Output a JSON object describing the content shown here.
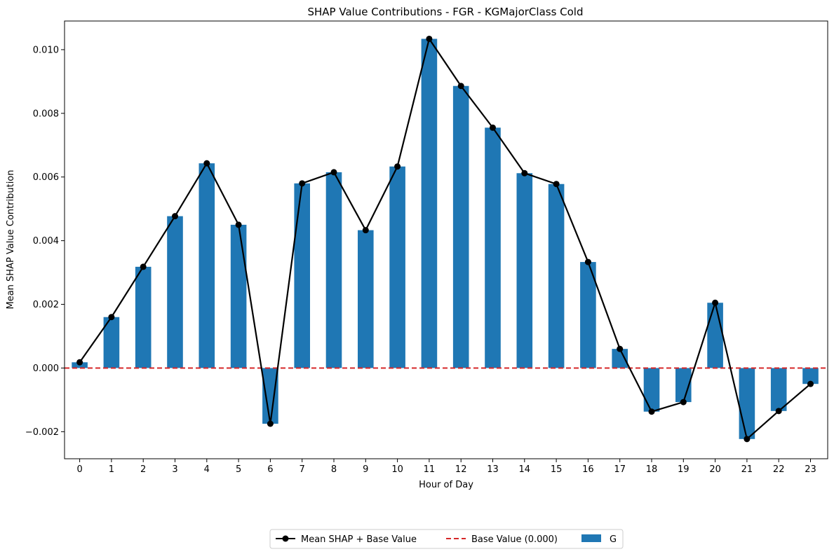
{
  "chart_data": {
    "type": "bar",
    "title": "SHAP Value Contributions - FGR - KGMajorClass Cold",
    "xlabel": "Hour of Day",
    "ylabel": "Mean SHAP Value Contribution",
    "categories": [
      "0",
      "1",
      "2",
      "3",
      "4",
      "5",
      "6",
      "7",
      "8",
      "9",
      "10",
      "11",
      "12",
      "13",
      "14",
      "15",
      "16",
      "17",
      "18",
      "19",
      "20",
      "21",
      "22",
      "23"
    ],
    "ylim": [
      -0.00285,
      0.0109
    ],
    "yticks": [
      -0.002,
      0.0,
      0.002,
      0.004,
      0.006,
      0.008,
      0.01
    ],
    "ytick_labels": [
      "−0.002",
      "0.000",
      "0.002",
      "0.004",
      "0.006",
      "0.008",
      "0.010"
    ],
    "series": [
      {
        "name": "G",
        "kind": "bar",
        "color": "#1f77b4",
        "values": [
          0.00018,
          0.0016,
          0.00318,
          0.00477,
          0.00643,
          0.0045,
          -0.00175,
          0.0058,
          0.00615,
          0.00433,
          0.00633,
          0.01034,
          0.00886,
          0.00755,
          0.00612,
          0.00578,
          0.00333,
          0.0006,
          -0.00137,
          -0.00107,
          0.00205,
          -0.00223,
          -0.00135,
          -0.0005
        ]
      },
      {
        "name": "Mean SHAP + Base Value",
        "kind": "line",
        "color": "#000000",
        "values": [
          0.00018,
          0.0016,
          0.00318,
          0.00477,
          0.00643,
          0.0045,
          -0.00175,
          0.0058,
          0.00615,
          0.00433,
          0.00633,
          0.01034,
          0.00886,
          0.00755,
          0.00612,
          0.00578,
          0.00333,
          0.0006,
          -0.00137,
          -0.00107,
          0.00205,
          -0.00223,
          -0.00135,
          -0.0005
        ]
      }
    ],
    "base_line": {
      "name": "Base Value (0.000)",
      "value": 0.0,
      "color": "#d62728",
      "style": "dashed"
    },
    "legend": {
      "placement": "bottom-center",
      "entries": [
        "Mean SHAP + Base Value",
        "Base Value (0.000)",
        "G"
      ]
    },
    "grid": false
  }
}
